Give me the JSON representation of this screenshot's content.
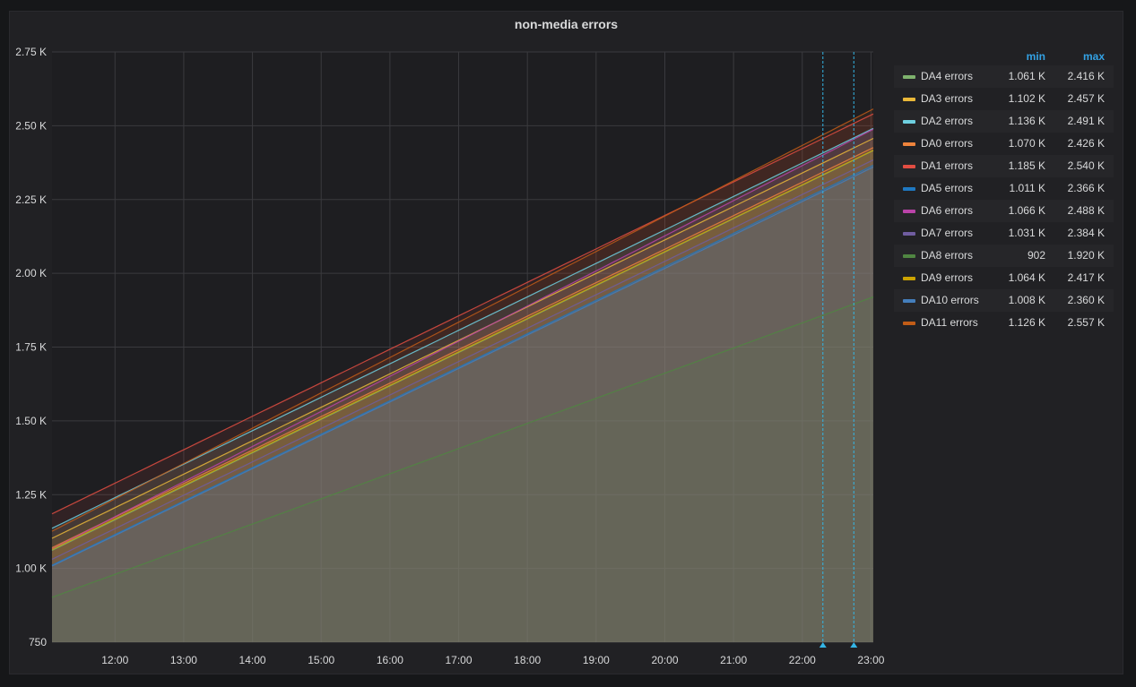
{
  "panel": {
    "title": "non-media errors"
  },
  "legend_headers": {
    "min": "min",
    "max": "max"
  },
  "chart_data": {
    "type": "area",
    "title": "non-media errors",
    "x_ticks": [
      "12:00",
      "13:00",
      "14:00",
      "15:00",
      "16:00",
      "17:00",
      "18:00",
      "19:00",
      "20:00",
      "21:00",
      "22:00",
      "23:00"
    ],
    "y_ticks": [
      "750",
      "1.00 K",
      "1.25 K",
      "1.50 K",
      "1.75 K",
      "2.00 K",
      "2.25 K",
      "2.50 K",
      "2.75 K"
    ],
    "ylim": [
      750,
      2750
    ],
    "xlim": [
      "11:05",
      "23:02"
    ],
    "grid": true,
    "legend_position": "right",
    "annotations": [
      "22:18",
      "22:45"
    ],
    "series": [
      {
        "name": "DA4 errors",
        "color": "#7eb26d",
        "min": "1.061 K",
        "max": "2.416 K",
        "start": 1061,
        "end": 2416
      },
      {
        "name": "DA3 errors",
        "color": "#eab839",
        "min": "1.102 K",
        "max": "2.457 K",
        "start": 1102,
        "end": 2457
      },
      {
        "name": "DA2 errors",
        "color": "#6ed0e0",
        "min": "1.136 K",
        "max": "2.491 K",
        "start": 1136,
        "end": 2491
      },
      {
        "name": "DA0 errors",
        "color": "#ef843c",
        "min": "1.070 K",
        "max": "2.426 K",
        "start": 1070,
        "end": 2426
      },
      {
        "name": "DA1 errors",
        "color": "#e24d42",
        "min": "1.185 K",
        "max": "2.540 K",
        "start": 1185,
        "end": 2540
      },
      {
        "name": "DA5 errors",
        "color": "#1f78c1",
        "min": "1.011 K",
        "max": "2.366 K",
        "start": 1011,
        "end": 2366
      },
      {
        "name": "DA6 errors",
        "color": "#ba43a9",
        "min": "1.066 K",
        "max": "2.488 K",
        "start": 1066,
        "end": 2488
      },
      {
        "name": "DA7 errors",
        "color": "#705da0",
        "min": "1.031 K",
        "max": "2.384 K",
        "start": 1031,
        "end": 2384
      },
      {
        "name": "DA8 errors",
        "color": "#508642",
        "min": "902",
        "max": "1.920 K",
        "start": 902,
        "end": 1920
      },
      {
        "name": "DA9 errors",
        "color": "#cca300",
        "min": "1.064 K",
        "max": "2.417 K",
        "start": 1064,
        "end": 2417
      },
      {
        "name": "DA10 errors",
        "color": "#447ebc",
        "min": "1.008 K",
        "max": "2.360 K",
        "start": 1008,
        "end": 2360
      },
      {
        "name": "DA11 errors",
        "color": "#c15c17",
        "min": "1.126 K",
        "max": "2.557 K",
        "start": 1126,
        "end": 2557
      }
    ]
  }
}
